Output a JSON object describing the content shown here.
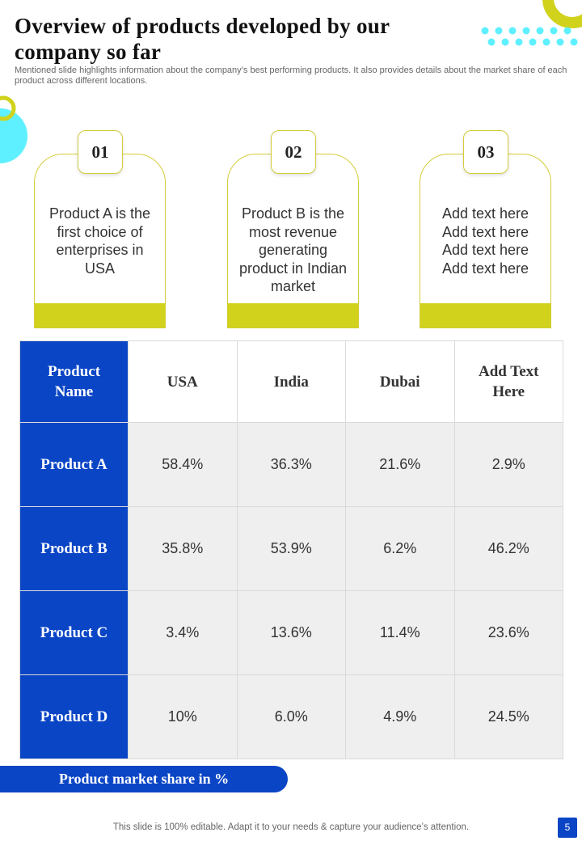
{
  "header": {
    "title": "Overview of products developed by our company so far",
    "subtitle": "Mentioned slide highlights information about the company’s best performing products. It also provides details about the market share of each product across different locations."
  },
  "cards": [
    {
      "number": "01",
      "text": "Product A is the first choice of enterprises in USA"
    },
    {
      "number": "02",
      "text": "Product B is the most revenue generating product in Indian market"
    },
    {
      "number": "03",
      "text": "Add text here Add text here Add text here Add text here"
    }
  ],
  "table": {
    "headers": [
      "Product Name",
      "USA",
      "India",
      "Dubai",
      "Add Text Here"
    ],
    "rows": [
      {
        "name": "Product A",
        "values": [
          "58.4%",
          "36.3%",
          "21.6%",
          "2.9%"
        ]
      },
      {
        "name": "Product B",
        "values": [
          "35.8%",
          "53.9%",
          "6.2%",
          "46.2%"
        ]
      },
      {
        "name": "Product C",
        "values": [
          "3.4%",
          "13.6%",
          "11.4%",
          "23.6%"
        ]
      },
      {
        "name": "Product D",
        "values": [
          "10%",
          "6.0%",
          "4.9%",
          "24.5%"
        ]
      }
    ]
  },
  "caption": "Product market share in %",
  "footer": {
    "note": "This slide is 100% editable. Adapt it to your needs & capture your audience’s attention.",
    "page": "5"
  },
  "colors": {
    "brand_blue": "#0a45c6",
    "accent_yellow": "#d0d21c",
    "accent_cyan": "#5ff0ff"
  }
}
